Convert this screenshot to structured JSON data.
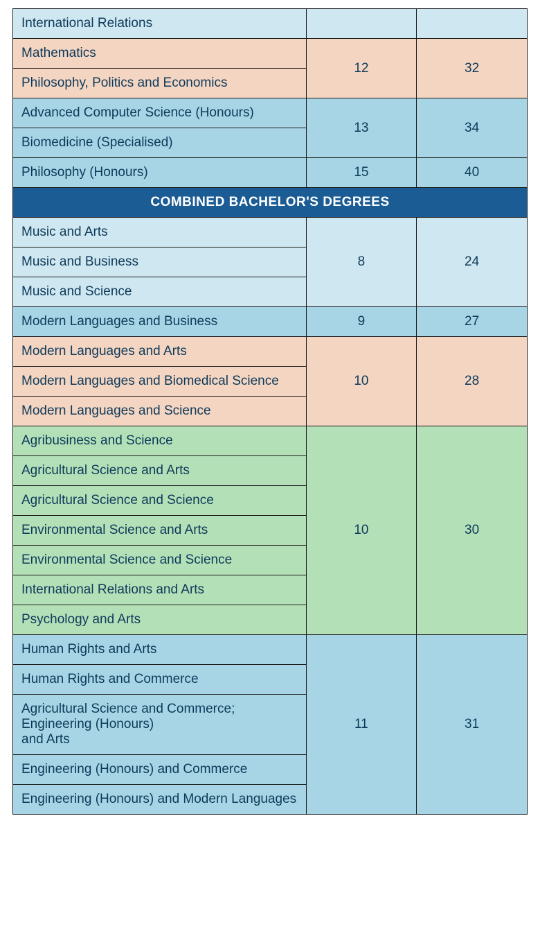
{
  "colors": {
    "lightBlue": "#cfe7f0",
    "midBlue": "#a8d5e5",
    "salmon": "#f4d5c2",
    "green": "#b4e0b8",
    "headerBg": "#1b5c95",
    "text": "#0d3a5a",
    "border": "#1a1a1a"
  },
  "columns": {
    "programWidth": "57%",
    "col2Width": "21.5%",
    "col3Width": "21.5%"
  },
  "sectionHeader": "COMBINED BACHELOR'S DEGREES",
  "groups": [
    {
      "id": "intl-relations-only",
      "bg": "lightBlue",
      "programs": [
        "International Relations"
      ],
      "val1": "",
      "val2": ""
    },
    {
      "id": "math-ppe",
      "bg": "salmon",
      "programs": [
        "Mathematics",
        "Philosophy, Politics and Economics"
      ],
      "val1": "12",
      "val2": "32"
    },
    {
      "id": "acs-biomed",
      "bg": "midBlue",
      "programs": [
        "Advanced Computer Science (Honours)",
        "Biomedicine (Specialised)"
      ],
      "val1": "13",
      "val2": "34"
    },
    {
      "id": "philosophy-hons",
      "bg": "midBlue",
      "programs": [
        "Philosophy (Honours)"
      ],
      "val1": "15",
      "val2": "40"
    },
    {
      "id": "section-header",
      "isHeader": true
    },
    {
      "id": "music-group",
      "bg": "lightBlue",
      "programs": [
        "Music and Arts",
        "Music and Business",
        "Music and Science"
      ],
      "val1": "8",
      "val2": "24"
    },
    {
      "id": "modlang-business",
      "bg": "midBlue",
      "programs": [
        "Modern Languages and Business"
      ],
      "val1": "9",
      "val2": "27"
    },
    {
      "id": "modlang-group",
      "bg": "salmon",
      "programs": [
        "Modern Languages and Arts",
        "Modern Languages and Biomedical Science",
        "Modern Languages and Science"
      ],
      "val1": "10",
      "val2": "28"
    },
    {
      "id": "agri-env-group",
      "bg": "green",
      "programs": [
        "Agribusiness and Science",
        "Agricultural Science and Arts",
        "Agricultural Science and Science",
        "Environmental Science and Arts",
        "Environmental Science and Science",
        "International Relations and Arts",
        "Psychology and Arts"
      ],
      "val1": "10",
      "val2": "30"
    },
    {
      "id": "humanrights-eng-group",
      "bg": "midBlue",
      "programs": [
        "Human Rights and Arts",
        "Human Rights and Commerce",
        "Agricultural Science and Commerce; Engineering (Honours)\nand Arts",
        "Engineering (Honours) and Commerce",
        "Engineering (Honours) and Modern Languages"
      ],
      "val1": "11",
      "val2": "31"
    }
  ]
}
